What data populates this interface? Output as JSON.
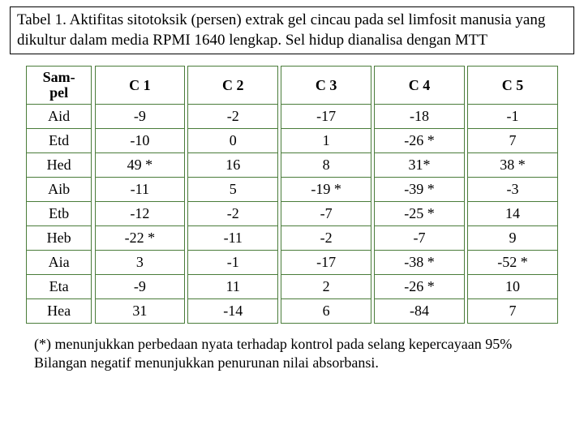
{
  "caption": "Tabel 1. Aktifitas sitotoksik (persen) extrak gel cincau pada sel limfosit manusia yang dikultur dalam media RPMI 1640 lengkap. Sel hidup dianalisa dengan MTT",
  "table": {
    "header_sample": "Sam-pel",
    "columns": [
      "C 1",
      "C 2",
      "C 3",
      "C 4",
      "C 5"
    ],
    "rows": [
      {
        "sample": "Aid",
        "v": [
          "-9",
          "-2",
          "-17",
          "-18",
          "-1"
        ]
      },
      {
        "sample": "Etd",
        "v": [
          "-10",
          "0",
          "1",
          "-26 *",
          "7"
        ]
      },
      {
        "sample": "Hed",
        "v": [
          "49 *",
          "16",
          "8",
          "31*",
          "38 *"
        ]
      },
      {
        "sample": "Aib",
        "v": [
          "-11",
          "5",
          "-19 *",
          "-39 *",
          "-3"
        ]
      },
      {
        "sample": "Etb",
        "v": [
          "-12",
          "-2",
          "-7",
          "-25 *",
          "14"
        ]
      },
      {
        "sample": "Heb",
        "v": [
          "-22 *",
          "-11",
          "-2",
          "-7",
          "9"
        ]
      },
      {
        "sample": "Aia",
        "v": [
          "3",
          "-1",
          "-17",
          "-38 *",
          "-52 *"
        ]
      },
      {
        "sample": "Eta",
        "v": [
          "-9",
          "11",
          "2",
          "-26 *",
          "10"
        ]
      },
      {
        "sample": "Hea",
        "v": [
          "31",
          "-14",
          "6",
          "-84",
          "7"
        ]
      }
    ],
    "border_color": "#4a7c3a",
    "text_color": "#000000",
    "font_family": "Times New Roman",
    "cell_fontsize": 18,
    "caption_fontsize": 19
  },
  "footnote_line1": "(*) menunjukkan perbedaan nyata terhadap kontrol pada selang  kepercayaan 95%",
  "footnote_line2": "Bilangan negatif menunjukkan penurunan nilai absorbansi."
}
